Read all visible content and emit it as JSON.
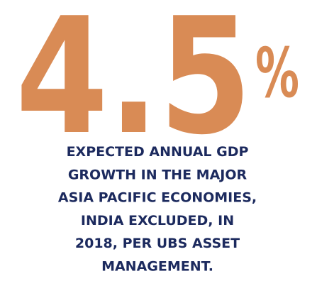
{
  "stat": {
    "number": "4.5",
    "unit": "%"
  },
  "caption_lines": [
    "EXPECTED ANNUAL GDP",
    "GROWTH IN THE MAJOR",
    "ASIA PACIFIC ECONOMIES,",
    "INDIA EXCLUDED, IN",
    "2018, PER UBS ASSET",
    "MANAGEMENT."
  ]
}
